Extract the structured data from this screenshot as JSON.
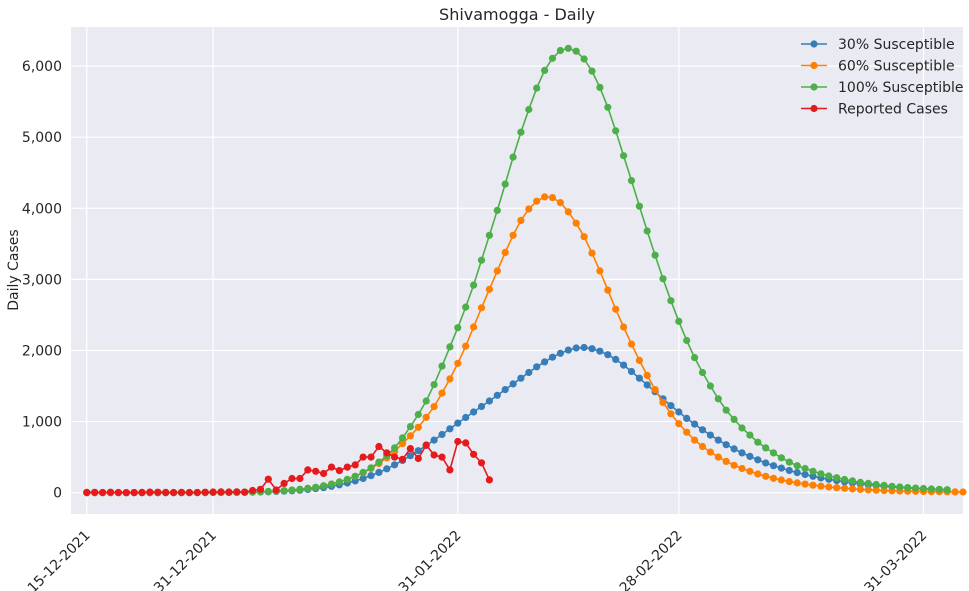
{
  "chart_data": {
    "type": "line",
    "title": "Shivamogga - Daily",
    "xlabel": "",
    "ylabel": "Daily Cases",
    "x_start": "15-12-2021",
    "x_ticks": [
      "15-12-2021",
      "31-12-2021",
      "31-01-2022",
      "28-02-2022",
      "31-03-2022"
    ],
    "x_range": [
      "13-12-2021",
      "05-04-2022"
    ],
    "y_ticks": [
      0,
      1000,
      2000,
      3000,
      4000,
      5000,
      6000
    ],
    "y_tick_labels": [
      "0",
      "1,000",
      "2,000",
      "3,000",
      "4,000",
      "5,000",
      "6,000"
    ],
    "ylim": [
      -300,
      6550
    ],
    "grid": true,
    "legend_position": "top-right",
    "series": [
      {
        "name": "30% Susceptible",
        "color": "#377eb8",
        "values": [
          0,
          0,
          0,
          0,
          0,
          0,
          0,
          0,
          0,
          0,
          0,
          0,
          0,
          0,
          1,
          1,
          2,
          2,
          3,
          4,
          5,
          7,
          9,
          12,
          16,
          21,
          27,
          35,
          45,
          57,
          72,
          90,
          111,
          136,
          165,
          200,
          240,
          285,
          336,
          392,
          454,
          520,
          590,
          664,
          740,
          818,
          898,
          978,
          1057,
          1135,
          1212,
          1290,
          1370,
          1450,
          1530,
          1610,
          1690,
          1770,
          1840,
          1905,
          1960,
          2005,
          2035,
          2042,
          2025,
          1990,
          1940,
          1875,
          1795,
          1705,
          1610,
          1515,
          1420,
          1320,
          1225,
          1135,
          1045,
          965,
          885,
          810,
          740,
          675,
          615,
          560,
          510,
          462,
          418,
          380,
          345,
          312,
          282,
          255,
          230,
          208,
          188,
          170,
          153,
          138,
          124,
          112,
          101,
          91,
          82,
          73,
          66,
          59,
          53,
          48,
          43,
          38
        ]
      },
      {
        "name": "60% Susceptible",
        "color": "#ff7f00",
        "values": [
          0,
          0,
          0,
          0,
          0,
          0,
          0,
          0,
          0,
          0,
          0,
          0,
          0,
          0,
          1,
          1,
          2,
          3,
          4,
          5,
          7,
          9,
          12,
          16,
          21,
          28,
          36,
          47,
          60,
          76,
          96,
          121,
          151,
          187,
          230,
          280,
          340,
          410,
          490,
          580,
          690,
          800,
          920,
          1060,
          1210,
          1400,
          1600,
          1820,
          2060,
          2330,
          2600,
          2860,
          3120,
          3380,
          3620,
          3830,
          3990,
          4100,
          4160,
          4150,
          4080,
          3950,
          3790,
          3600,
          3370,
          3120,
          2850,
          2580,
          2330,
          2090,
          1860,
          1650,
          1450,
          1270,
          1110,
          970,
          850,
          740,
          650,
          570,
          500,
          440,
          385,
          340,
          300,
          262,
          230,
          202,
          178,
          156,
          137,
          120,
          105,
          92,
          80,
          70,
          61,
          53,
          46,
          40,
          35,
          31,
          27,
          24,
          21,
          19,
          17,
          15,
          13,
          12,
          11,
          10
        ]
      },
      {
        "name": "100% Susceptible",
        "color": "#4daf4a",
        "values": [
          0,
          0,
          0,
          0,
          0,
          0,
          0,
          0,
          0,
          0,
          0,
          0,
          0,
          0,
          1,
          1,
          2,
          3,
          4,
          5,
          7,
          9,
          12,
          16,
          21,
          28,
          36,
          47,
          60,
          75,
          95,
          120,
          150,
          185,
          230,
          285,
          350,
          430,
          520,
          630,
          770,
          930,
          1100,
          1290,
          1520,
          1780,
          2050,
          2320,
          2610,
          2920,
          3270,
          3620,
          3970,
          4340,
          4720,
          5070,
          5390,
          5690,
          5940,
          6110,
          6220,
          6250,
          6210,
          6100,
          5930,
          5700,
          5420,
          5090,
          4740,
          4390,
          4030,
          3680,
          3340,
          3010,
          2700,
          2410,
          2140,
          1900,
          1690,
          1500,
          1320,
          1160,
          1030,
          910,
          810,
          710,
          630,
          560,
          490,
          430,
          380,
          340,
          300,
          265,
          235,
          210,
          185,
          165,
          145,
          130,
          115,
          102,
          90,
          80,
          72,
          65,
          58,
          52,
          47,
          42
        ]
      },
      {
        "name": "Reported Cases",
        "color": "#e41a1c",
        "values": [
          4,
          5,
          3,
          6,
          2,
          0,
          3,
          4,
          8,
          6,
          4,
          2,
          5,
          3,
          2,
          6,
          9,
          11,
          10,
          12,
          8,
          30,
          48,
          190,
          38,
          130,
          200,
          200,
          320,
          300,
          270,
          360,
          310,
          360,
          390,
          500,
          500,
          650,
          560,
          500,
          470,
          620,
          480,
          670,
          530,
          500,
          320,
          720,
          700,
          540,
          420,
          180
        ]
      }
    ]
  }
}
